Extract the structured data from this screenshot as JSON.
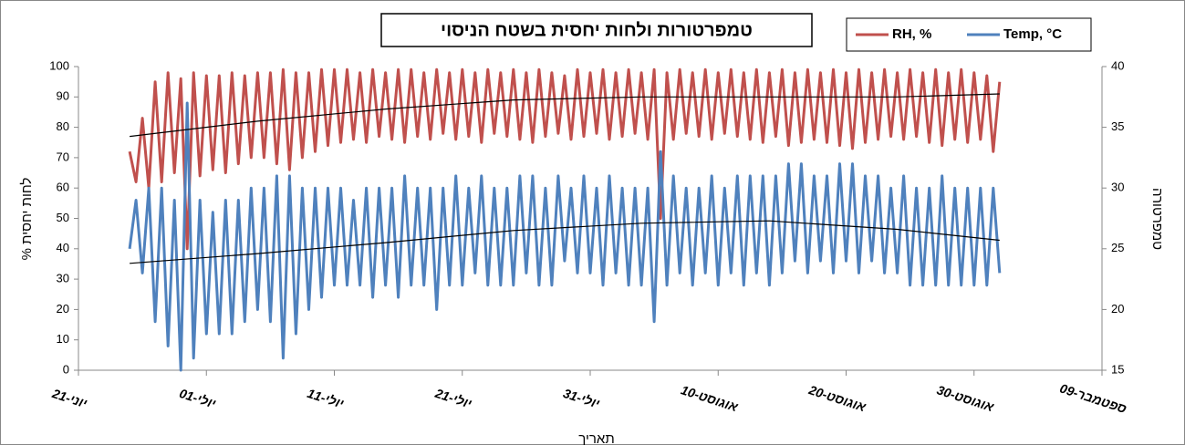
{
  "chart_data": {
    "type": "line",
    "title": "טמפרטורות ולחות יחסית בשטח הניסוי",
    "x_label": "תאריך",
    "y_label": "לחות יחסית %",
    "y2_label": "טמפרטורה",
    "xlim": [
      0,
      80
    ],
    "xticks": [
      {
        "value": 0,
        "label": "21-יוני"
      },
      {
        "value": 10,
        "label": "01-יולי"
      },
      {
        "value": 20,
        "label": "11-יולי"
      },
      {
        "value": 30,
        "label": "21-יולי"
      },
      {
        "value": 40,
        "label": "31-יולי"
      },
      {
        "value": 50,
        "label": "10-אוגוסט"
      },
      {
        "value": 60,
        "label": "20-אוגוסט"
      },
      {
        "value": 70,
        "label": "30-אוגוסט"
      },
      {
        "value": 80,
        "label": "09-ספטמבר"
      }
    ],
    "ylim": [
      0,
      100
    ],
    "yticks": [
      0,
      10,
      20,
      30,
      40,
      50,
      60,
      70,
      80,
      90,
      100
    ],
    "y2lim": [
      15,
      40
    ],
    "y2ticks": [
      15,
      20,
      25,
      30,
      35,
      40
    ],
    "x": [
      4,
      4.5,
      5,
      5.5,
      6,
      6.5,
      7,
      7.5,
      8,
      8.5,
      9,
      9.5,
      10,
      10.5,
      11,
      11.5,
      12,
      12.5,
      13,
      13.5,
      14,
      14.5,
      15,
      15.5,
      16,
      16.5,
      17,
      17.5,
      18,
      18.5,
      19,
      19.5,
      20,
      20.5,
      21,
      21.5,
      22,
      22.5,
      23,
      23.5,
      24,
      24.5,
      25,
      25.5,
      26,
      26.5,
      27,
      27.5,
      28,
      28.5,
      29,
      29.5,
      30,
      30.5,
      31,
      31.5,
      32,
      32.5,
      33,
      33.5,
      34,
      34.5,
      35,
      35.5,
      36,
      36.5,
      37,
      37.5,
      38,
      38.5,
      39,
      39.5,
      40,
      40.5,
      41,
      41.5,
      42,
      42.5,
      43,
      43.5,
      44,
      44.5,
      45,
      45.5,
      46,
      46.5,
      47,
      47.5,
      48,
      48.5,
      49,
      49.5,
      50,
      50.5,
      51,
      51.5,
      52,
      52.5,
      53,
      53.5,
      54,
      54.5,
      55,
      55.5,
      56,
      56.5,
      57,
      57.5,
      58,
      58.5,
      59,
      59.5,
      60,
      60.5,
      61,
      61.5,
      62,
      62.5,
      63,
      63.5,
      64,
      64.5,
      65,
      65.5,
      66,
      66.5,
      67,
      67.5,
      68,
      68.5,
      69,
      69.5,
      70,
      70.5,
      71,
      71.5,
      72
    ],
    "series": [
      {
        "name": "RH, %",
        "color": "#c0504d",
        "axis": "y",
        "values": [
          72,
          62,
          83,
          60,
          95,
          62,
          98,
          65,
          96,
          40,
          98,
          64,
          97,
          66,
          97,
          65,
          98,
          68,
          97,
          70,
          98,
          70,
          98,
          68,
          99,
          66,
          98,
          70,
          98,
          72,
          99,
          74,
          99,
          75,
          99,
          76,
          98,
          75,
          99,
          77,
          98,
          76,
          99,
          75,
          99,
          77,
          98,
          76,
          99,
          78,
          98,
          76,
          99,
          77,
          98,
          75,
          99,
          78,
          98,
          77,
          99,
          76,
          98,
          75,
          99,
          77,
          98,
          78,
          97,
          76,
          99,
          77,
          98,
          78,
          99,
          76,
          98,
          77,
          99,
          78,
          98,
          76,
          99,
          50,
          98,
          76,
          99,
          78,
          98,
          77,
          99,
          76,
          98,
          78,
          99,
          77,
          98,
          76,
          99,
          75,
          98,
          77,
          99,
          74,
          98,
          75,
          99,
          76,
          98,
          75,
          99,
          74,
          98,
          73,
          99,
          75,
          98,
          76,
          99,
          77,
          98,
          76,
          99,
          77,
          98,
          75,
          99,
          74,
          98,
          76,
          99,
          75,
          98,
          76,
          97,
          72,
          95
        ]
      },
      {
        "name": "Temp, °C",
        "color": "#4f81bd",
        "axis": "y2",
        "values": [
          25,
          29,
          23,
          30,
          19,
          30,
          17,
          29,
          15,
          37,
          16,
          29,
          18,
          28,
          18,
          29,
          18,
          29,
          19,
          30,
          20,
          30,
          19,
          31,
          16,
          31,
          18,
          30,
          20,
          30,
          21,
          30,
          22,
          30,
          22,
          29,
          22,
          30,
          21,
          30,
          22,
          30,
          21,
          31,
          22,
          30,
          22,
          30,
          20,
          30,
          22,
          31,
          22,
          30,
          23,
          31,
          22,
          30,
          22,
          30,
          22,
          31,
          23,
          31,
          22,
          30,
          22,
          31,
          24,
          30,
          23,
          31,
          23,
          30,
          22,
          31,
          23,
          30,
          22,
          30,
          22,
          30,
          19,
          33,
          22,
          31,
          23,
          30,
          22,
          30,
          23,
          31,
          22,
          30,
          23,
          31,
          22,
          31,
          23,
          31,
          22,
          31,
          23,
          32,
          24,
          32,
          23,
          31,
          24,
          31,
          23,
          32,
          24,
          32,
          23,
          31,
          24,
          31,
          23,
          30,
          23,
          31,
          22,
          30,
          22,
          30,
          22,
          31,
          22,
          30,
          22,
          30,
          22,
          30,
          22,
          30,
          23
        ]
      }
    ],
    "trendlines": [
      {
        "color": "#000000",
        "axis": "y",
        "x": [
          4,
          14,
          24,
          34,
          44,
          54,
          64,
          72
        ],
        "values": [
          77,
          82,
          86,
          89,
          90,
          90,
          90,
          91
        ]
      },
      {
        "color": "#000000",
        "axis": "y2",
        "x": [
          4,
          14,
          24,
          34,
          44,
          54,
          64,
          72
        ],
        "values": [
          23.8,
          24.6,
          25.5,
          26.5,
          27.1,
          27.3,
          26.6,
          25.7
        ]
      }
    ]
  }
}
